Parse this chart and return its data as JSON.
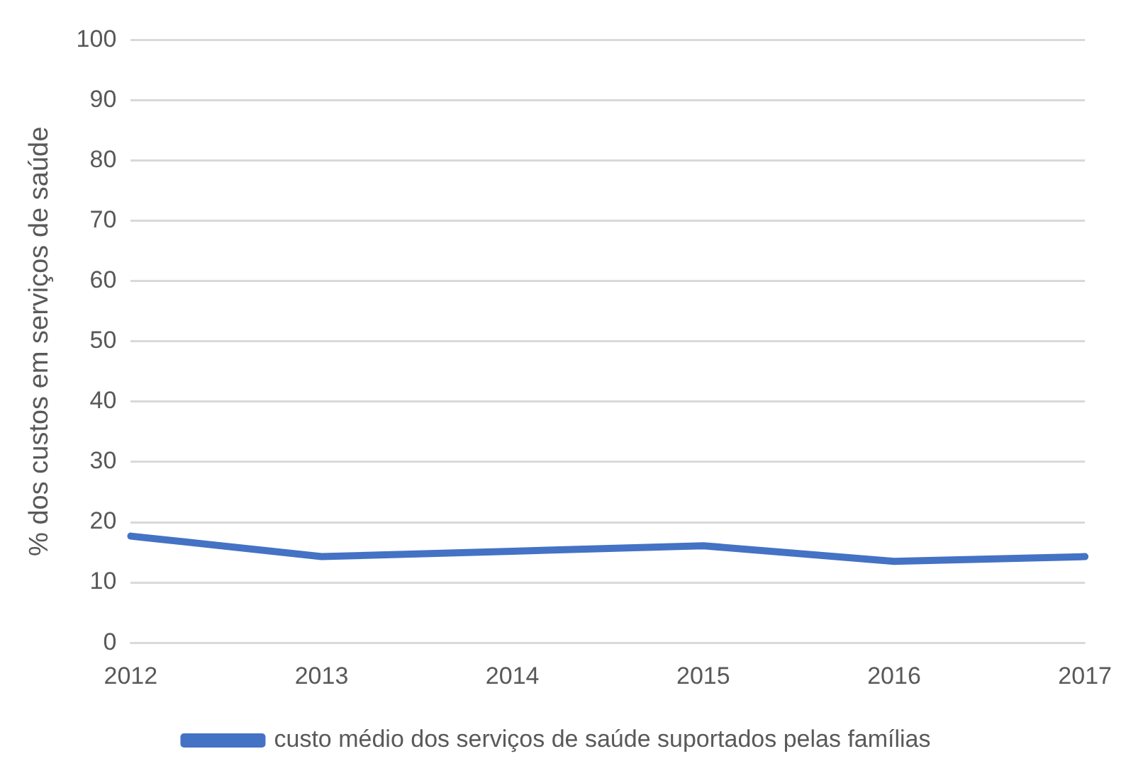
{
  "chart_data": {
    "type": "line",
    "ylabel": "% dos custos em serviços de saúde",
    "categories": [
      "2012",
      "2013",
      "2014",
      "2015",
      "2016",
      "2017"
    ],
    "series": [
      {
        "name": "custo médio dos serviços de saúde suportados pelas famílias",
        "color": "#4472c4",
        "values": [
          17.7,
          14.3,
          15.2,
          16.1,
          13.5,
          14.3
        ]
      }
    ],
    "ylim": [
      0,
      100
    ],
    "yticks": [
      0,
      10,
      20,
      30,
      40,
      50,
      60,
      70,
      80,
      90,
      100
    ],
    "grid": "y",
    "legend": "bottom",
    "marker": "none",
    "line_style": "solid"
  }
}
